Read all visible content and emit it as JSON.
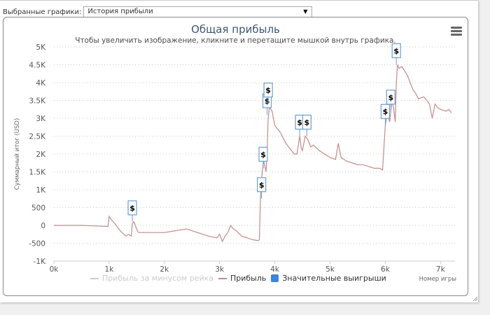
{
  "selector": {
    "label": "Выбранные графики:",
    "value": "История прибыли",
    "arrow": "▼"
  },
  "chart": {
    "title": "Общая прибыль",
    "subtitle": "Чтобы увеличить изображение, кликните и перетащите мышкой внутрь графика.",
    "menu_icon": "hamburger-menu-icon",
    "yaxis_title": "Суммарный итог (USD)",
    "xaxis_title": "Номер игры",
    "legend": [
      {
        "label": "Прибыль за минусом рейка",
        "type": "line",
        "color": "#cccccc",
        "state": "hidden"
      },
      {
        "label": "Прибыль",
        "type": "line",
        "color": "#c48a8a",
        "state": "active"
      },
      {
        "label": "Значительные выигрыши",
        "type": "square",
        "color": "#3d85d8",
        "state": "active"
      }
    ],
    "colors": {
      "line": "#c48a8a",
      "flag_border": "#6a9fd4",
      "grid": "#c8c8c8",
      "title": "#3e576f"
    }
  },
  "chart_data": {
    "type": "line",
    "title": "Общая прибыль",
    "subtitle": "Чтобы увеличить изображение, кликните и перетащите мышкой внутрь графика.",
    "xlabel": "Номер игры",
    "ylabel": "Суммарный итог (USD)",
    "xlim": [
      0,
      7250
    ],
    "ylim": [
      -1000,
      5000
    ],
    "x_ticks": [
      "0k",
      "1k",
      "2k",
      "3k",
      "4k",
      "5k",
      "6k",
      "7k"
    ],
    "y_ticks": [
      "5K",
      "4.5K",
      "4K",
      "3.5K",
      "3K",
      "2.5K",
      "2K",
      "1.5K",
      "1K",
      "500",
      "0",
      "-500",
      "-1K"
    ],
    "grid": "horizontal dotted",
    "legend_position": "bottom",
    "series": [
      {
        "name": "Прибыль",
        "x": [
          0,
          500,
          980,
          1000,
          1020,
          1100,
          1200,
          1300,
          1350,
          1400,
          1420,
          1450,
          1500,
          1530,
          1600,
          1800,
          2000,
          2200,
          2400,
          2600,
          2800,
          2950,
          3000,
          3050,
          3100,
          3150,
          3200,
          3250,
          3300,
          3400,
          3500,
          3600,
          3700,
          3720,
          3740,
          3760,
          3780,
          3800,
          3820,
          3840,
          3860,
          3880,
          3900,
          3950,
          4000,
          4100,
          4200,
          4300,
          4350,
          4400,
          4450,
          4480,
          4500,
          4550,
          4600,
          4650,
          4700,
          4800,
          4900,
          5000,
          5100,
          5150,
          5200,
          5300,
          5400,
          5500,
          5600,
          5700,
          5800,
          5900,
          5950,
          6000,
          6020,
          6050,
          6080,
          6100,
          6120,
          6150,
          6180,
          6200,
          6220,
          6250,
          6300,
          6400,
          6500,
          6550,
          6600,
          6700,
          6750,
          6800,
          6850,
          6900,
          6950,
          7000,
          7100,
          7150,
          7200
        ],
        "values": [
          0,
          0,
          -30,
          250,
          200,
          50,
          -150,
          -300,
          -250,
          -300,
          50,
          100,
          -100,
          -200,
          -200,
          -200,
          -200,
          -150,
          -100,
          -200,
          -300,
          -350,
          -250,
          -450,
          -300,
          -200,
          0,
          -100,
          -150,
          -300,
          -350,
          -400,
          -430,
          -400,
          750,
          1300,
          1600,
          1800,
          1650,
          1500,
          2100,
          3000,
          3300,
          3200,
          2800,
          2600,
          2300,
          2100,
          2000,
          2000,
          2500,
          2150,
          2100,
          2500,
          2400,
          2200,
          2250,
          2100,
          2000,
          1900,
          1850,
          2300,
          1900,
          1800,
          1750,
          1700,
          1700,
          1650,
          1600,
          1600,
          1550,
          2800,
          3000,
          3050,
          2900,
          3200,
          3500,
          3300,
          2900,
          4000,
          4500,
          4400,
          4450,
          4200,
          3800,
          3700,
          3550,
          3600,
          3500,
          3400,
          3000,
          3400,
          3300,
          3250,
          3200,
          3250,
          3150
        ]
      }
    ],
    "markers": {
      "name": "Значительные выигрыши",
      "symbol": "$",
      "points": [
        {
          "x": 1420,
          "y": 100
        },
        {
          "x": 3760,
          "y": 750
        },
        {
          "x": 3790,
          "y": 1600
        },
        {
          "x": 3860,
          "y": 3100
        },
        {
          "x": 3880,
          "y": 3400
        },
        {
          "x": 4450,
          "y": 2500
        },
        {
          "x": 4580,
          "y": 2500
        },
        {
          "x": 6000,
          "y": 2800
        },
        {
          "x": 6100,
          "y": 3200
        },
        {
          "x": 6200,
          "y": 4500
        }
      ]
    }
  }
}
